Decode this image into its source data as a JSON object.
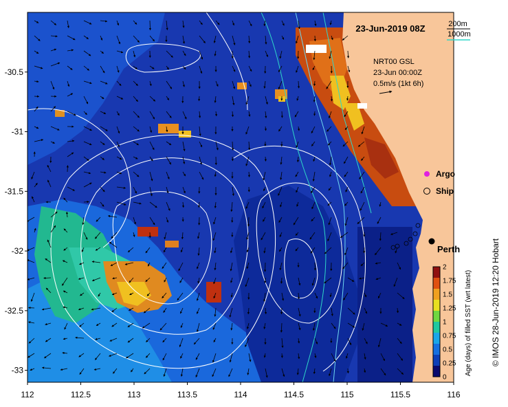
{
  "date_label": "23-Jun-2019 08Z",
  "depth_legend": {
    "contour_1": "200m",
    "contour_2": "1000m",
    "color_1": "#000000",
    "color_2": "#2fd7c8"
  },
  "current_info": {
    "model": "NRT00 GSL",
    "time": "23-Jun 00:00Z",
    "scale": "0.5m/s (1kt 6h)"
  },
  "legend_items": [
    {
      "label": "Argo",
      "marker": "argo-marker",
      "color": "#e020e0"
    },
    {
      "label": "Ship",
      "marker": "ship-marker",
      "color": "#000000"
    }
  ],
  "city_label": "Perth",
  "credit": "© IMOS 28-Jun-2019 12:20 Hobart",
  "colorbar": {
    "title": "Age (days) of filled SST (wrt latest)",
    "ticks": [
      "0",
      "0.25",
      "0.5",
      "0.75",
      "1",
      "1.25",
      "1.5",
      "1.75",
      "2"
    ],
    "colors": [
      "#0a0a6e",
      "#0d3fb8",
      "#1670e0",
      "#1aa6e8",
      "#20c8a0",
      "#70d840",
      "#e8e020",
      "#f0a020",
      "#e05010",
      "#901010"
    ]
  },
  "axes": {
    "x_ticks": [
      "112",
      "112.5",
      "113",
      "113.5",
      "114",
      "114.5",
      "115",
      "115.5",
      "116"
    ],
    "y_ticks": [
      "-30.5",
      "-31",
      "-31.5",
      "-32",
      "-32.5",
      "-33"
    ],
    "xlim": [
      112,
      116
    ],
    "ylim": [
      -33.1,
      -30
    ]
  },
  "colors": {
    "land": "#f8c69a",
    "ocean_base": "#1840b8"
  }
}
